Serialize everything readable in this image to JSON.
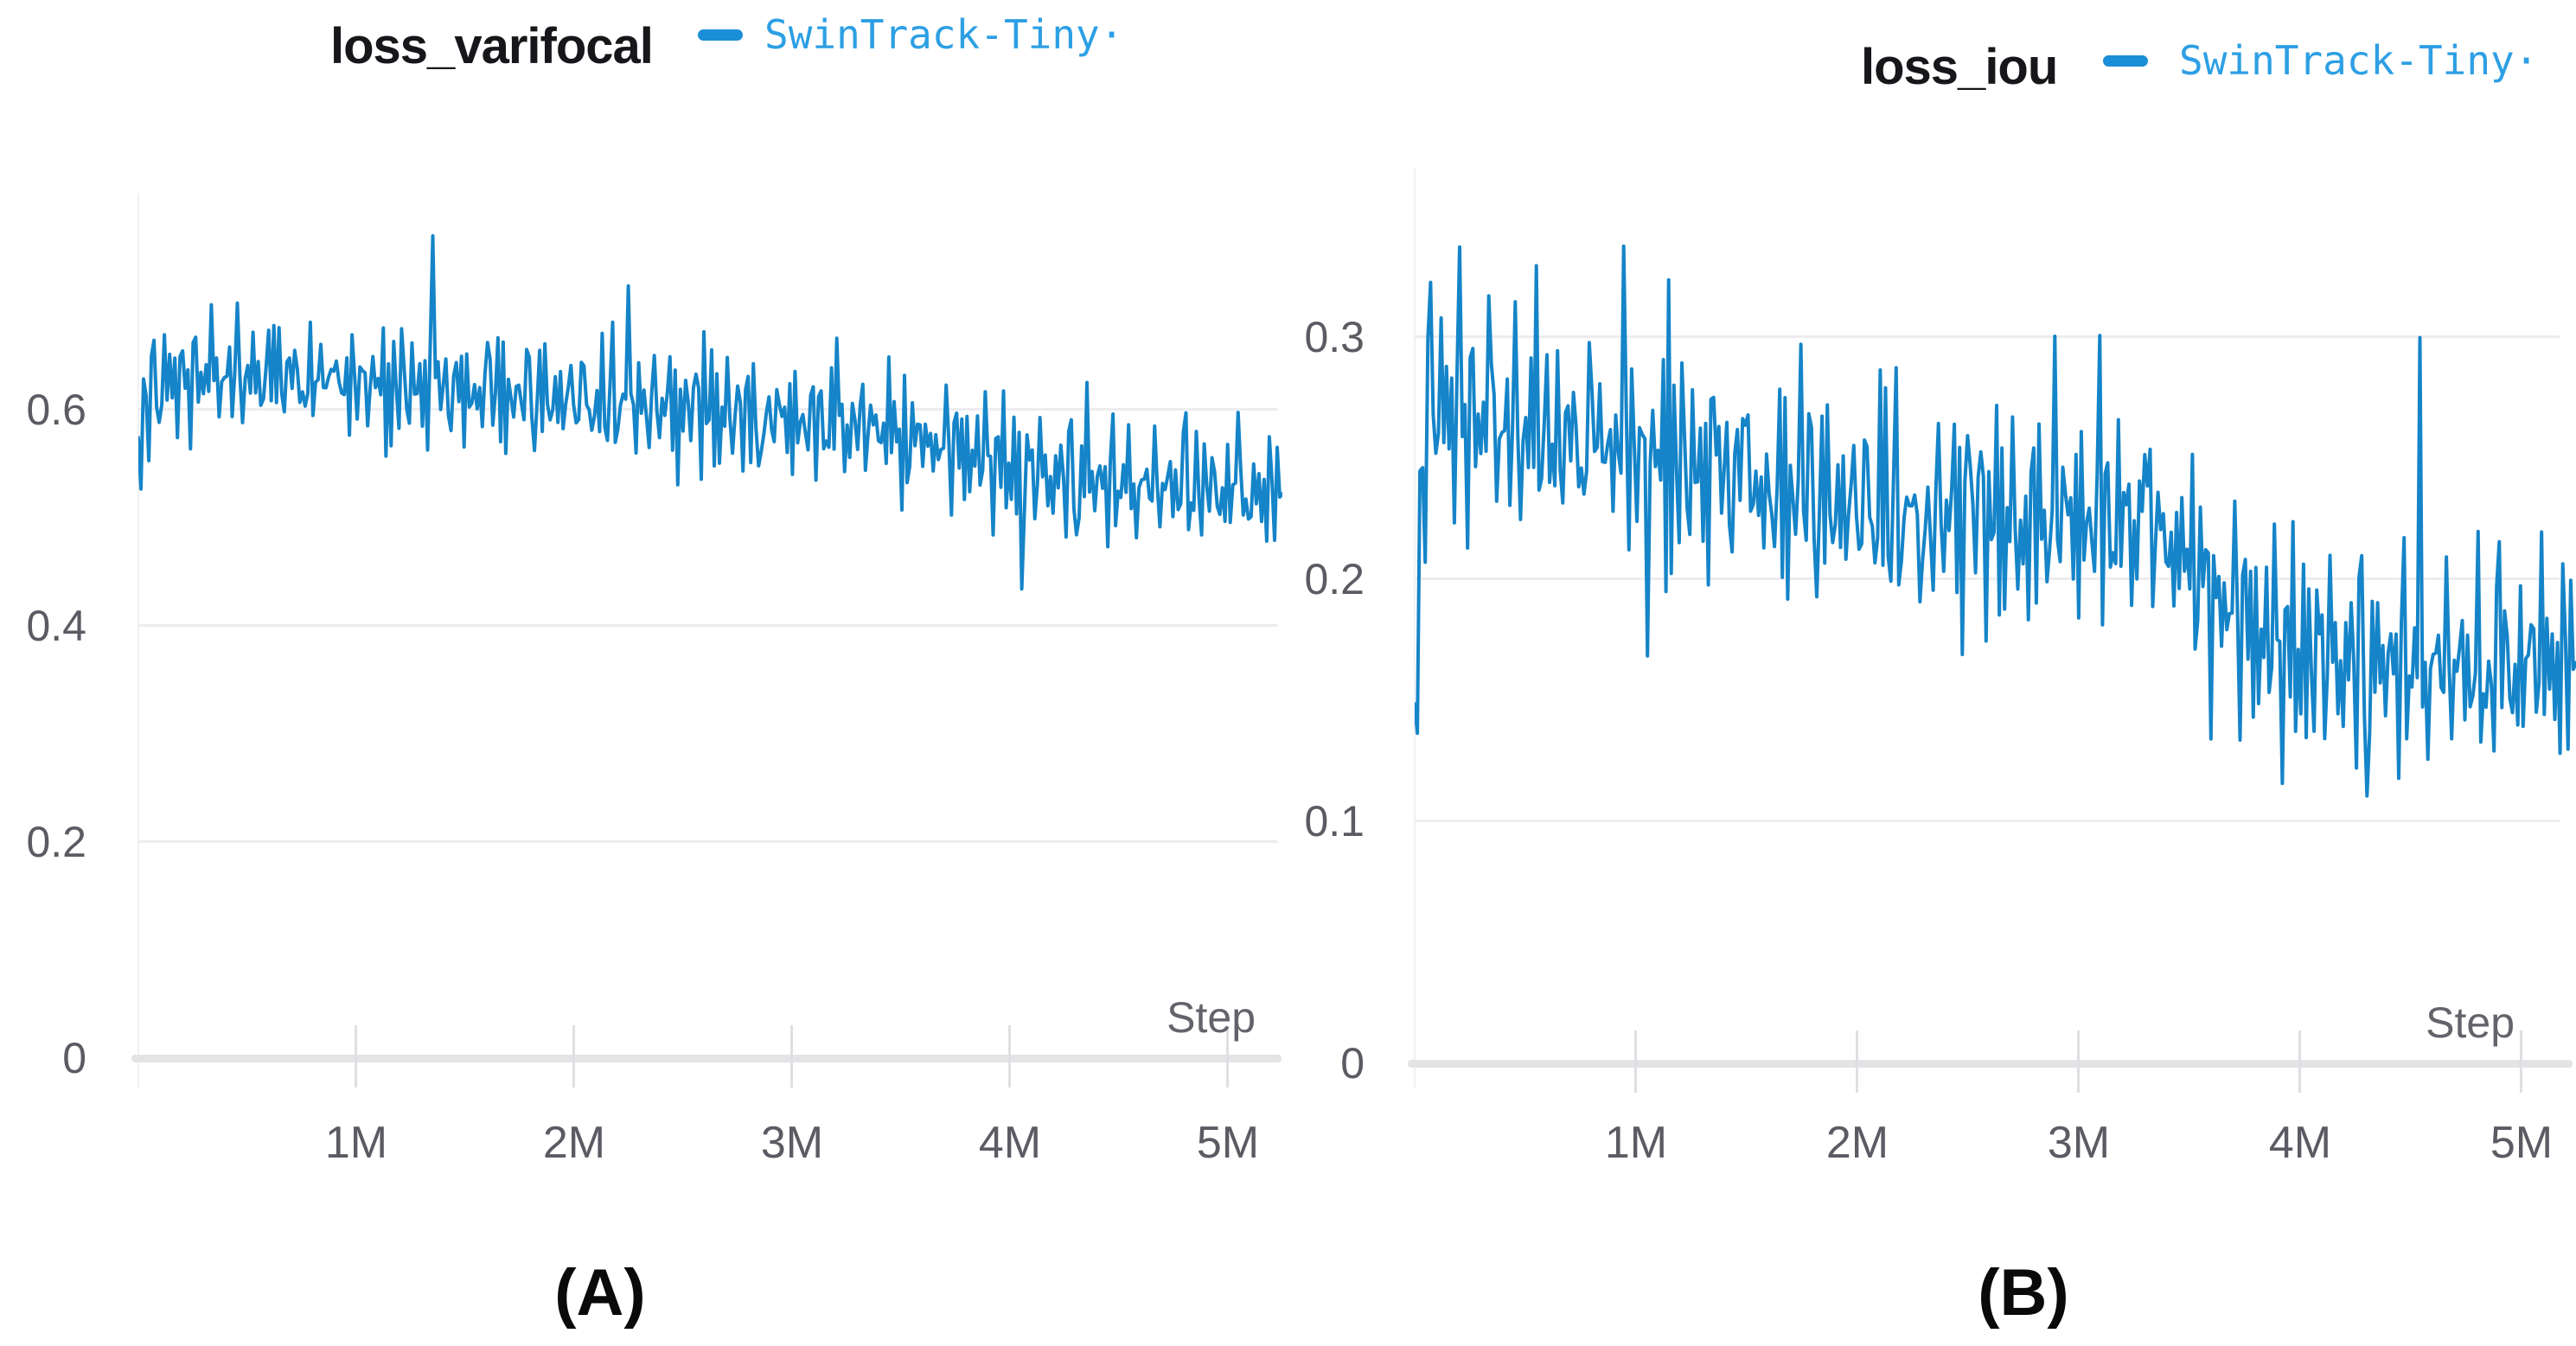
{
  "figure": {
    "captions": [
      "(A)",
      "(B)"
    ]
  },
  "chart_data": [
    {
      "type": "line",
      "title": "loss_varifocal",
      "xlabel": "Step",
      "legend": {
        "series_label": "SwinTrack-Tiny·",
        "marker_color": "#1b8ed8",
        "label_color": "#2d9fe4"
      },
      "series": [
        {
          "name": "SwinTrack-Tiny·",
          "color": "#1584c8"
        }
      ],
      "xlim": [
        0,
        5.25
      ],
      "ylim": [
        0,
        0.8
      ],
      "x_units": "training steps (millions)",
      "x_ticks": [
        {
          "v": 1,
          "label": "1M"
        },
        {
          "v": 2,
          "label": "2M"
        },
        {
          "v": 3,
          "label": "3M"
        },
        {
          "v": 4,
          "label": "4M"
        },
        {
          "v": 5,
          "label": "5M"
        }
      ],
      "y_ticks": [
        {
          "v": 0,
          "label": "0"
        },
        {
          "v": 0.2,
          "label": "0.2"
        },
        {
          "v": 0.4,
          "label": "0.4"
        },
        {
          "v": 0.6,
          "label": "0.6"
        }
      ],
      "grid": true,
      "legend_position": "top-right-of-title",
      "n_points": 440,
      "trend": [
        [
          0,
          0.545
        ],
        [
          0.04,
          0.61
        ],
        [
          0.12,
          0.628
        ],
        [
          0.5,
          0.633
        ],
        [
          1.0,
          0.625
        ],
        [
          1.5,
          0.617
        ],
        [
          2.0,
          0.611
        ],
        [
          2.5,
          0.602
        ],
        [
          3.0,
          0.591
        ],
        [
          3.4,
          0.583
        ],
        [
          3.8,
          0.563
        ],
        [
          4.1,
          0.543
        ],
        [
          4.5,
          0.532
        ],
        [
          5.0,
          0.527
        ],
        [
          5.25,
          0.524
        ]
      ],
      "noise": {
        "scale": 0.62,
        "p16": [
          0.012,
          -0.028,
          0.041,
          -0.008,
          -0.044,
          0.027,
          0.058,
          -0.018,
          -0.052,
          0.006,
          0.033,
          -0.02,
          0.047,
          -0.036,
          0.016,
          -0.05
        ],
        "p7": [
          0.02,
          -0.013,
          0.001,
          0.029,
          -0.026,
          0.01,
          -0.022
        ],
        "p11": [
          0.015,
          -0.02,
          0.03,
          -0.005,
          -0.025,
          0.02,
          0.04,
          -0.03,
          0.01,
          -0.04,
          0.005
        ]
      },
      "spikes": [
        [
          0.35,
          0.045
        ],
        [
          0.62,
          0.05
        ],
        [
          0.9,
          0.04
        ],
        [
          1.35,
          0.17
        ],
        [
          1.62,
          0.045
        ],
        [
          2.25,
          0.105
        ],
        [
          2.6,
          0.05
        ],
        [
          3.2,
          0.065
        ],
        [
          3.45,
          0.05
        ],
        [
          4.35,
          0.06
        ],
        [
          4.8,
          0.055
        ],
        [
          5.05,
          0.05
        ]
      ],
      "dips": [
        [
          2.85,
          -0.05
        ],
        [
          3.5,
          -0.055
        ],
        [
          4.05,
          -0.1
        ],
        [
          4.3,
          -0.045
        ],
        [
          5.1,
          -0.04
        ]
      ],
      "approx_start_value": 0.57,
      "approx_end_value": 0.52
    },
    {
      "type": "line",
      "title": "loss_iou",
      "xlabel": "Step",
      "legend": {
        "series_label": "SwinTrack-Tiny·",
        "marker_color": "#1b8ed8",
        "label_color": "#2d9fe4"
      },
      "series": [
        {
          "name": "SwinTrack-Tiny·",
          "color": "#1584c8"
        }
      ],
      "xlim": [
        0,
        5.25
      ],
      "ylim": [
        0,
        0.37
      ],
      "x_units": "training steps (millions)",
      "x_ticks": [
        {
          "v": 1,
          "label": "1M"
        },
        {
          "v": 2,
          "label": "2M"
        },
        {
          "v": 3,
          "label": "3M"
        },
        {
          "v": 4,
          "label": "4M"
        },
        {
          "v": 5,
          "label": "5M"
        }
      ],
      "y_ticks": [
        {
          "v": 0,
          "label": "0"
        },
        {
          "v": 0.1,
          "label": "0.1"
        },
        {
          "v": 0.2,
          "label": "0.2"
        },
        {
          "v": 0.3,
          "label": "0.3"
        }
      ],
      "grid": true,
      "legend_position": "top-right-of-title",
      "n_points": 440,
      "trend": [
        [
          0,
          0.125
        ],
        [
          0.03,
          0.23
        ],
        [
          0.07,
          0.285
        ],
        [
          0.15,
          0.268
        ],
        [
          0.4,
          0.262
        ],
        [
          0.7,
          0.257
        ],
        [
          1.0,
          0.251
        ],
        [
          1.4,
          0.242
        ],
        [
          1.8,
          0.234
        ],
        [
          2.2,
          0.228
        ],
        [
          2.7,
          0.226
        ],
        [
          3.3,
          0.224
        ],
        [
          3.55,
          0.205
        ],
        [
          3.75,
          0.183
        ],
        [
          3.95,
          0.171
        ],
        [
          4.3,
          0.167
        ],
        [
          4.7,
          0.165
        ],
        [
          5.1,
          0.164
        ],
        [
          5.25,
          0.167
        ]
      ],
      "noise": {
        "scale": 0.5,
        "p16": [
          0.012,
          -0.028,
          0.041,
          -0.008,
          -0.044,
          0.027,
          0.058,
          -0.018,
          -0.052,
          0.006,
          0.033,
          -0.02,
          0.047,
          -0.036,
          0.016,
          -0.05
        ],
        "p7": [
          0.02,
          -0.013,
          0.001,
          0.029,
          -0.026,
          0.01,
          -0.022
        ],
        "p11": [
          0.015,
          -0.02,
          0.03,
          -0.005,
          -0.025,
          0.02,
          0.04,
          -0.03,
          0.01,
          -0.04,
          0.005
        ]
      },
      "spikes": [
        [
          0.2,
          0.05
        ],
        [
          0.35,
          0.065
        ],
        [
          0.55,
          0.06
        ],
        [
          0.8,
          0.05
        ],
        [
          0.95,
          0.095
        ],
        [
          1.15,
          0.06
        ],
        [
          1.35,
          0.055
        ],
        [
          1.5,
          0.065
        ],
        [
          1.75,
          0.055
        ],
        [
          2.1,
          0.05
        ],
        [
          2.5,
          0.05
        ],
        [
          2.9,
          0.06
        ],
        [
          3.1,
          0.05
        ],
        [
          3.3,
          0.045
        ],
        [
          4.55,
          0.09
        ],
        [
          4.9,
          0.05
        ],
        [
          5.1,
          0.045
        ]
      ],
      "dips": [
        [
          1.05,
          -0.05
        ],
        [
          1.6,
          -0.04
        ],
        [
          2.3,
          -0.05
        ],
        [
          2.75,
          -0.04
        ],
        [
          3.6,
          -0.045
        ],
        [
          4.3,
          -0.05
        ],
        [
          4.85,
          -0.04
        ]
      ],
      "approx_start_value": 0.15,
      "approx_end_value": 0.17
    }
  ]
}
